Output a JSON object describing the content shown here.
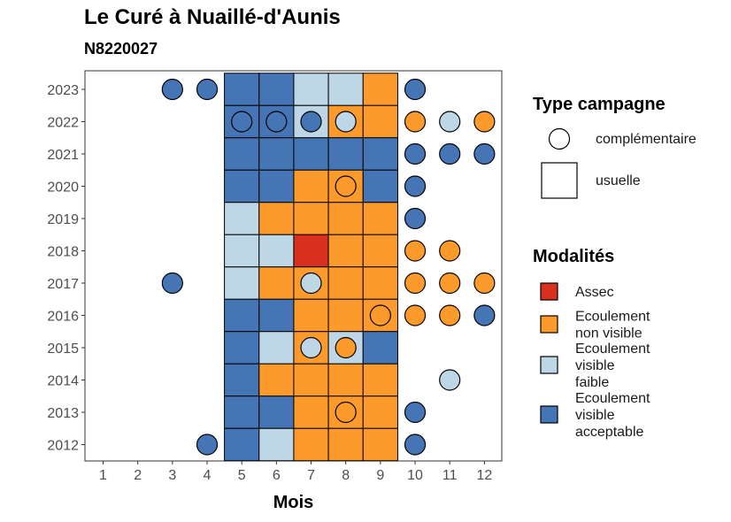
{
  "title": "Le Curé à Nuaillé-d'Aunis",
  "subtitle": "N8220027",
  "chart_data": {
    "type": "heatmap",
    "xlabel": "Mois",
    "ylabel": "",
    "x_ticks": [
      "1",
      "2",
      "3",
      "4",
      "5",
      "6",
      "7",
      "8",
      "9",
      "10",
      "11",
      "12"
    ],
    "y_ticks": [
      "2023",
      "2022",
      "2021",
      "2020",
      "2019",
      "2018",
      "2017",
      "2016",
      "2015",
      "2014",
      "2013",
      "2012"
    ],
    "colors": {
      "Assec": "#d7301f",
      "Ecoulement non visible": "#fd9a2c",
      "Ecoulement visible faible": "#bdd7e7",
      "Ecoulement visible acceptable": "#4575b4"
    },
    "legend_type": {
      "title": "Type campagne",
      "items": [
        {
          "key": "complementaire",
          "label": "complémentaire",
          "shape": "circle"
        },
        {
          "key": "usuelle",
          "label": "usuelle",
          "shape": "square"
        }
      ]
    },
    "legend_mod": {
      "title": "Modalités",
      "items": [
        {
          "key": "Assec",
          "lines": [
            "Assec"
          ]
        },
        {
          "key": "Ecoulement non visible",
          "lines": [
            "Ecoulement",
            "non visible"
          ]
        },
        {
          "key": "Ecoulement visible faible",
          "lines": [
            "Ecoulement",
            "visible",
            "faible"
          ]
        },
        {
          "key": "Ecoulement visible acceptable",
          "lines": [
            "Ecoulement",
            "visible",
            "acceptable"
          ]
        }
      ]
    },
    "usuelle": [
      {
        "year": 2023,
        "month": 5,
        "mod": "Ecoulement visible acceptable"
      },
      {
        "year": 2023,
        "month": 6,
        "mod": "Ecoulement visible acceptable"
      },
      {
        "year": 2023,
        "month": 7,
        "mod": "Ecoulement visible faible"
      },
      {
        "year": 2023,
        "month": 8,
        "mod": "Ecoulement visible faible"
      },
      {
        "year": 2023,
        "month": 9,
        "mod": "Ecoulement non visible"
      },
      {
        "year": 2022,
        "month": 5,
        "mod": "Ecoulement visible acceptable"
      },
      {
        "year": 2022,
        "month": 6,
        "mod": "Ecoulement visible acceptable"
      },
      {
        "year": 2022,
        "month": 7,
        "mod": "Ecoulement visible faible"
      },
      {
        "year": 2022,
        "month": 8,
        "mod": "Ecoulement non visible"
      },
      {
        "year": 2022,
        "month": 9,
        "mod": "Ecoulement non visible"
      },
      {
        "year": 2021,
        "month": 5,
        "mod": "Ecoulement visible acceptable"
      },
      {
        "year": 2021,
        "month": 6,
        "mod": "Ecoulement visible acceptable"
      },
      {
        "year": 2021,
        "month": 7,
        "mod": "Ecoulement visible acceptable"
      },
      {
        "year": 2021,
        "month": 8,
        "mod": "Ecoulement visible acceptable"
      },
      {
        "year": 2021,
        "month": 9,
        "mod": "Ecoulement visible acceptable"
      },
      {
        "year": 2020,
        "month": 5,
        "mod": "Ecoulement visible acceptable"
      },
      {
        "year": 2020,
        "month": 6,
        "mod": "Ecoulement visible acceptable"
      },
      {
        "year": 2020,
        "month": 7,
        "mod": "Ecoulement non visible"
      },
      {
        "year": 2020,
        "month": 8,
        "mod": "Ecoulement non visible"
      },
      {
        "year": 2020,
        "month": 9,
        "mod": "Ecoulement visible acceptable"
      },
      {
        "year": 2019,
        "month": 5,
        "mod": "Ecoulement visible faible"
      },
      {
        "year": 2019,
        "month": 6,
        "mod": "Ecoulement non visible"
      },
      {
        "year": 2019,
        "month": 7,
        "mod": "Ecoulement non visible"
      },
      {
        "year": 2019,
        "month": 8,
        "mod": "Ecoulement non visible"
      },
      {
        "year": 2019,
        "month": 9,
        "mod": "Ecoulement non visible"
      },
      {
        "year": 2018,
        "month": 5,
        "mod": "Ecoulement visible faible"
      },
      {
        "year": 2018,
        "month": 6,
        "mod": "Ecoulement visible faible"
      },
      {
        "year": 2018,
        "month": 7,
        "mod": "Assec"
      },
      {
        "year": 2018,
        "month": 8,
        "mod": "Ecoulement non visible"
      },
      {
        "year": 2018,
        "month": 9,
        "mod": "Ecoulement non visible"
      },
      {
        "year": 2017,
        "month": 5,
        "mod": "Ecoulement visible faible"
      },
      {
        "year": 2017,
        "month": 6,
        "mod": "Ecoulement non visible"
      },
      {
        "year": 2017,
        "month": 7,
        "mod": "Ecoulement non visible"
      },
      {
        "year": 2017,
        "month": 8,
        "mod": "Ecoulement non visible"
      },
      {
        "year": 2017,
        "month": 9,
        "mod": "Ecoulement non visible"
      },
      {
        "year": 2016,
        "month": 5,
        "mod": "Ecoulement visible acceptable"
      },
      {
        "year": 2016,
        "month": 6,
        "mod": "Ecoulement visible acceptable"
      },
      {
        "year": 2016,
        "month": 7,
        "mod": "Ecoulement non visible"
      },
      {
        "year": 2016,
        "month": 8,
        "mod": "Ecoulement non visible"
      },
      {
        "year": 2016,
        "month": 9,
        "mod": "Ecoulement non visible"
      },
      {
        "year": 2015,
        "month": 5,
        "mod": "Ecoulement visible acceptable"
      },
      {
        "year": 2015,
        "month": 6,
        "mod": "Ecoulement visible faible"
      },
      {
        "year": 2015,
        "month": 7,
        "mod": "Ecoulement non visible"
      },
      {
        "year": 2015,
        "month": 8,
        "mod": "Ecoulement visible faible"
      },
      {
        "year": 2015,
        "month": 9,
        "mod": "Ecoulement visible acceptable"
      },
      {
        "year": 2014,
        "month": 5,
        "mod": "Ecoulement visible acceptable"
      },
      {
        "year": 2014,
        "month": 6,
        "mod": "Ecoulement non visible"
      },
      {
        "year": 2014,
        "month": 7,
        "mod": "Ecoulement non visible"
      },
      {
        "year": 2014,
        "month": 8,
        "mod": "Ecoulement non visible"
      },
      {
        "year": 2014,
        "month": 9,
        "mod": "Ecoulement non visible"
      },
      {
        "year": 2013,
        "month": 5,
        "mod": "Ecoulement visible acceptable"
      },
      {
        "year": 2013,
        "month": 6,
        "mod": "Ecoulement visible acceptable"
      },
      {
        "year": 2013,
        "month": 7,
        "mod": "Ecoulement non visible"
      },
      {
        "year": 2013,
        "month": 8,
        "mod": "Ecoulement non visible"
      },
      {
        "year": 2013,
        "month": 9,
        "mod": "Ecoulement non visible"
      },
      {
        "year": 2012,
        "month": 5,
        "mod": "Ecoulement visible acceptable"
      },
      {
        "year": 2012,
        "month": 6,
        "mod": "Ecoulement visible faible"
      },
      {
        "year": 2012,
        "month": 7,
        "mod": "Ecoulement non visible"
      },
      {
        "year": 2012,
        "month": 8,
        "mod": "Ecoulement non visible"
      },
      {
        "year": 2012,
        "month": 9,
        "mod": "Ecoulement non visible"
      }
    ],
    "complementaire": [
      {
        "year": 2023,
        "month": 3,
        "mod": "Ecoulement visible acceptable"
      },
      {
        "year": 2023,
        "month": 4,
        "mod": "Ecoulement visible acceptable"
      },
      {
        "year": 2023,
        "month": 10,
        "mod": "Ecoulement visible acceptable"
      },
      {
        "year": 2022,
        "month": 5,
        "mod": "Ecoulement visible acceptable"
      },
      {
        "year": 2022,
        "month": 6,
        "mod": "Ecoulement visible acceptable"
      },
      {
        "year": 2022,
        "month": 7,
        "mod": "Ecoulement visible acceptable"
      },
      {
        "year": 2022,
        "month": 8,
        "mod": "Ecoulement visible faible"
      },
      {
        "year": 2022,
        "month": 10,
        "mod": "Ecoulement non visible"
      },
      {
        "year": 2022,
        "month": 11,
        "mod": "Ecoulement visible faible"
      },
      {
        "year": 2022,
        "month": 12,
        "mod": "Ecoulement non visible"
      },
      {
        "year": 2021,
        "month": 10,
        "mod": "Ecoulement visible acceptable"
      },
      {
        "year": 2021,
        "month": 11,
        "mod": "Ecoulement visible acceptable"
      },
      {
        "year": 2021,
        "month": 12,
        "mod": "Ecoulement visible acceptable"
      },
      {
        "year": 2020,
        "month": 8,
        "mod": "Ecoulement non visible"
      },
      {
        "year": 2020,
        "month": 10,
        "mod": "Ecoulement visible acceptable"
      },
      {
        "year": 2019,
        "month": 10,
        "mod": "Ecoulement visible acceptable"
      },
      {
        "year": 2018,
        "month": 10,
        "mod": "Ecoulement non visible"
      },
      {
        "year": 2018,
        "month": 11,
        "mod": "Ecoulement non visible"
      },
      {
        "year": 2017,
        "month": 3,
        "mod": "Ecoulement visible acceptable"
      },
      {
        "year": 2017,
        "month": 7,
        "mod": "Ecoulement visible faible"
      },
      {
        "year": 2017,
        "month": 10,
        "mod": "Ecoulement non visible"
      },
      {
        "year": 2017,
        "month": 11,
        "mod": "Ecoulement non visible"
      },
      {
        "year": 2017,
        "month": 12,
        "mod": "Ecoulement non visible"
      },
      {
        "year": 2016,
        "month": 9,
        "mod": "Ecoulement non visible"
      },
      {
        "year": 2016,
        "month": 10,
        "mod": "Ecoulement non visible"
      },
      {
        "year": 2016,
        "month": 11,
        "mod": "Ecoulement non visible"
      },
      {
        "year": 2016,
        "month": 12,
        "mod": "Ecoulement visible acceptable"
      },
      {
        "year": 2015,
        "month": 7,
        "mod": "Ecoulement visible faible"
      },
      {
        "year": 2015,
        "month": 8,
        "mod": "Ecoulement non visible"
      },
      {
        "year": 2014,
        "month": 11,
        "mod": "Ecoulement visible faible"
      },
      {
        "year": 2013,
        "month": 8,
        "mod": "Ecoulement non visible"
      },
      {
        "year": 2013,
        "month": 10,
        "mod": "Ecoulement visible acceptable"
      },
      {
        "year": 2012,
        "month": 4,
        "mod": "Ecoulement visible acceptable"
      },
      {
        "year": 2012,
        "month": 10,
        "mod": "Ecoulement visible acceptable"
      }
    ]
  }
}
